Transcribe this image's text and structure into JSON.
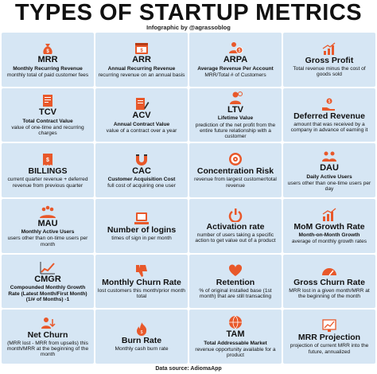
{
  "header": {
    "title": "TYPES OF STARTUP METRICS",
    "subtitle": "Infographic by @agrassoblog"
  },
  "footer": {
    "source": "Data source: AdiomaApp"
  },
  "accent_color": "#e8582a",
  "card_color": "#d6e6f4",
  "cards": [
    {
      "name": "MRR",
      "full": "Monthly Recurring Revenue",
      "desc": "monthly total of paid customer fees",
      "icon": "moneybag-icon"
    },
    {
      "name": "ARR",
      "full": "Annual Recurring Revenue",
      "desc": "recurring revenue on an annual basis",
      "icon": "calendar-money-icon"
    },
    {
      "name": "ARPA",
      "full": "Average Revenue Per Account",
      "desc": "MRR/Total # of Customers",
      "icon": "user-money-icon"
    },
    {
      "name": "Gross Profit",
      "full": "",
      "desc": "Total revenue minus the cost of goods sold",
      "icon": "rising-coins-icon"
    },
    {
      "name": "TCV",
      "full": "Total Contract Value",
      "desc": "value of one-time and recurring charges",
      "icon": "contract-icon"
    },
    {
      "name": "ACV",
      "full": "Annual Contract Value",
      "desc": "value of a contract over a year",
      "icon": "contract-pen-icon"
    },
    {
      "name": "LTV",
      "full": "Lifetime Value",
      "desc": "prediction of the net profit from the entire future relationship with a customer",
      "icon": "user-lifetime-icon"
    },
    {
      "name": "Deferred Revenue",
      "full": "",
      "desc": "amount that was received by a company in advance of earning it",
      "icon": "hand-coin-icon"
    },
    {
      "name": "BILLINGS",
      "full": "",
      "desc": "current quarter revenue + deferred revenue from previous quarter",
      "icon": "invoice-icon"
    },
    {
      "name": "CAC",
      "full": "Customer Acquisition Cost",
      "desc": "full cost of acquiring one user",
      "icon": "magnet-icon"
    },
    {
      "name": "Concentration Risk",
      "full": "",
      "desc": "revenue from largest customer/total revenue",
      "icon": "target-icon"
    },
    {
      "name": "DAU",
      "full": "Daily Active Users",
      "desc": "users other than one-time users per day",
      "icon": "users-icon"
    },
    {
      "name": "MAU",
      "full": "Monthly Active Users",
      "desc": "users other than on-time users per month",
      "icon": "users-group-icon"
    },
    {
      "name": "Number of logins",
      "full": "",
      "desc": "times of sign in per month",
      "icon": "login-icon"
    },
    {
      "name": "Activation rate",
      "full": "",
      "desc": "number of users taking a specific action to get value out of a product",
      "icon": "power-icon"
    },
    {
      "name": "MoM Growth Rate",
      "full": "Month-on-Month Growth",
      "desc": "average of monthly growth rates",
      "icon": "bar-growth-icon"
    },
    {
      "name": "CMGR",
      "full": "Compounded Monthly Growth Rate (Latest Month/First Month) (1/# of Months) -1",
      "desc": "",
      "icon": "growth-chart-icon"
    },
    {
      "name": "Monthly Churn Rate",
      "full": "",
      "desc": "lost customers this month/prior month total",
      "icon": "thumbs-down-icon"
    },
    {
      "name": "Retention",
      "full": "",
      "desc": "% of original installed base (1st month) that are still transacting",
      "icon": "loyalty-icon"
    },
    {
      "name": "Gross Churn Rate",
      "full": "",
      "desc": "MRR lost in a given month/MRR at the beginning of the month",
      "icon": "speedometer-icon"
    },
    {
      "name": "Net Churn",
      "full": "",
      "desc": "(MRR lost - MRR from upsells) this month/MRR at the beginning of the month",
      "icon": "user-down-icon"
    },
    {
      "name": "Burn Rate",
      "full": "",
      "desc": "Monthly cash burn rate",
      "icon": "fire-money-icon"
    },
    {
      "name": "TAM",
      "full": "Total Addressable Market",
      "desc": "revenue opportunity available for a product",
      "icon": "globe-icon"
    },
    {
      "name": "MRR Projection",
      "full": "",
      "desc": "projection of current MRR into the future, annualized",
      "icon": "projection-chart-icon"
    }
  ]
}
